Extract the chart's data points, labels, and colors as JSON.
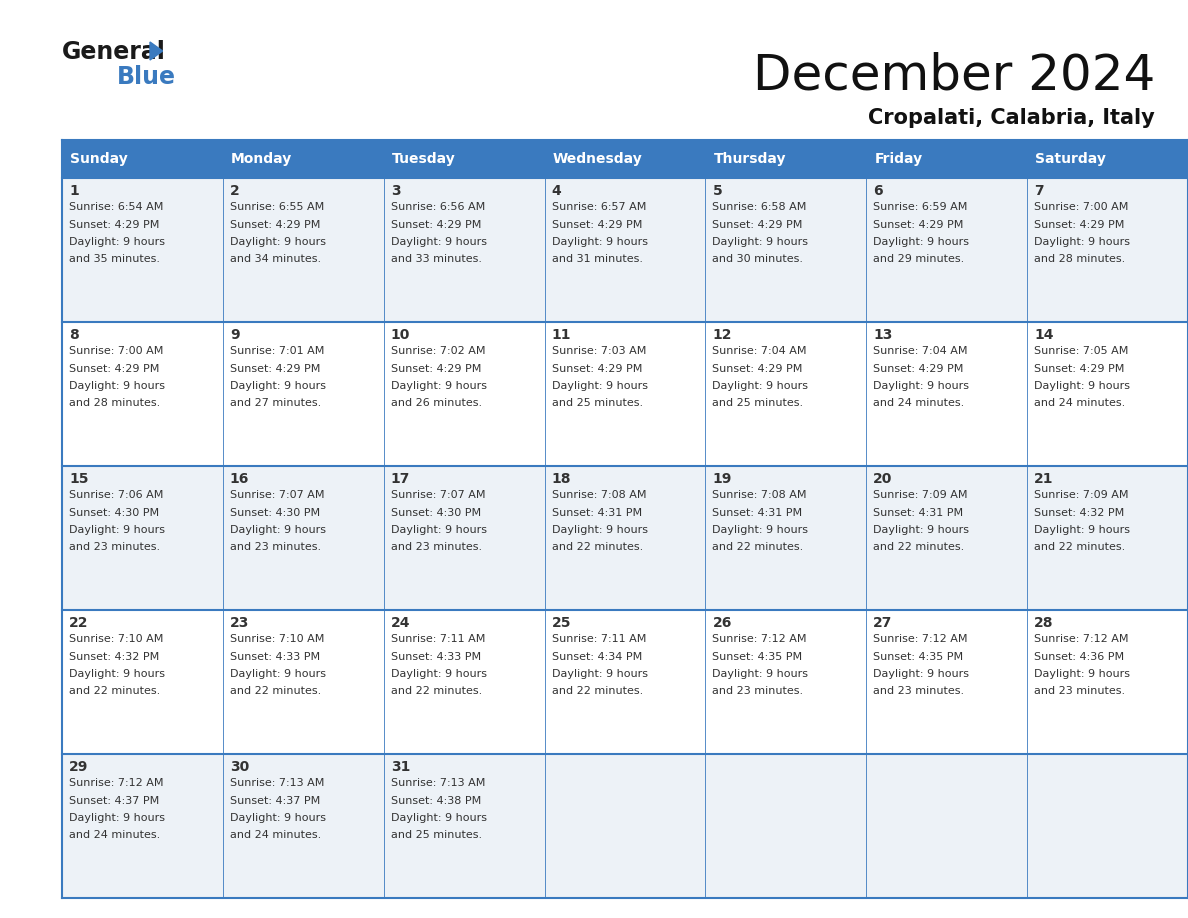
{
  "title": "December 2024",
  "subtitle": "Cropalati, Calabria, Italy",
  "header_bg": "#3a7abf",
  "header_text": "#ffffff",
  "days_of_week": [
    "Sunday",
    "Monday",
    "Tuesday",
    "Wednesday",
    "Thursday",
    "Friday",
    "Saturday"
  ],
  "row_bg": [
    "#edf2f7",
    "#ffffff",
    "#edf2f7",
    "#ffffff",
    "#edf2f7"
  ],
  "grid_line_color": "#3a7abf",
  "text_color": "#333333",
  "calendar": [
    [
      {
        "day": 1,
        "sunrise": "6:54 AM",
        "sunset": "4:29 PM",
        "daylight": "9 hours and 35 minutes."
      },
      {
        "day": 2,
        "sunrise": "6:55 AM",
        "sunset": "4:29 PM",
        "daylight": "9 hours and 34 minutes."
      },
      {
        "day": 3,
        "sunrise": "6:56 AM",
        "sunset": "4:29 PM",
        "daylight": "9 hours and 33 minutes."
      },
      {
        "day": 4,
        "sunrise": "6:57 AM",
        "sunset": "4:29 PM",
        "daylight": "9 hours and 31 minutes."
      },
      {
        "day": 5,
        "sunrise": "6:58 AM",
        "sunset": "4:29 PM",
        "daylight": "9 hours and 30 minutes."
      },
      {
        "day": 6,
        "sunrise": "6:59 AM",
        "sunset": "4:29 PM",
        "daylight": "9 hours and 29 minutes."
      },
      {
        "day": 7,
        "sunrise": "7:00 AM",
        "sunset": "4:29 PM",
        "daylight": "9 hours and 28 minutes."
      }
    ],
    [
      {
        "day": 8,
        "sunrise": "7:00 AM",
        "sunset": "4:29 PM",
        "daylight": "9 hours and 28 minutes."
      },
      {
        "day": 9,
        "sunrise": "7:01 AM",
        "sunset": "4:29 PM",
        "daylight": "9 hours and 27 minutes."
      },
      {
        "day": 10,
        "sunrise": "7:02 AM",
        "sunset": "4:29 PM",
        "daylight": "9 hours and 26 minutes."
      },
      {
        "day": 11,
        "sunrise": "7:03 AM",
        "sunset": "4:29 PM",
        "daylight": "9 hours and 25 minutes."
      },
      {
        "day": 12,
        "sunrise": "7:04 AM",
        "sunset": "4:29 PM",
        "daylight": "9 hours and 25 minutes."
      },
      {
        "day": 13,
        "sunrise": "7:04 AM",
        "sunset": "4:29 PM",
        "daylight": "9 hours and 24 minutes."
      },
      {
        "day": 14,
        "sunrise": "7:05 AM",
        "sunset": "4:29 PM",
        "daylight": "9 hours and 24 minutes."
      }
    ],
    [
      {
        "day": 15,
        "sunrise": "7:06 AM",
        "sunset": "4:30 PM",
        "daylight": "9 hours and 23 minutes."
      },
      {
        "day": 16,
        "sunrise": "7:07 AM",
        "sunset": "4:30 PM",
        "daylight": "9 hours and 23 minutes."
      },
      {
        "day": 17,
        "sunrise": "7:07 AM",
        "sunset": "4:30 PM",
        "daylight": "9 hours and 23 minutes."
      },
      {
        "day": 18,
        "sunrise": "7:08 AM",
        "sunset": "4:31 PM",
        "daylight": "9 hours and 22 minutes."
      },
      {
        "day": 19,
        "sunrise": "7:08 AM",
        "sunset": "4:31 PM",
        "daylight": "9 hours and 22 minutes."
      },
      {
        "day": 20,
        "sunrise": "7:09 AM",
        "sunset": "4:31 PM",
        "daylight": "9 hours and 22 minutes."
      },
      {
        "day": 21,
        "sunrise": "7:09 AM",
        "sunset": "4:32 PM",
        "daylight": "9 hours and 22 minutes."
      }
    ],
    [
      {
        "day": 22,
        "sunrise": "7:10 AM",
        "sunset": "4:32 PM",
        "daylight": "9 hours and 22 minutes."
      },
      {
        "day": 23,
        "sunrise": "7:10 AM",
        "sunset": "4:33 PM",
        "daylight": "9 hours and 22 minutes."
      },
      {
        "day": 24,
        "sunrise": "7:11 AM",
        "sunset": "4:33 PM",
        "daylight": "9 hours and 22 minutes."
      },
      {
        "day": 25,
        "sunrise": "7:11 AM",
        "sunset": "4:34 PM",
        "daylight": "9 hours and 22 minutes."
      },
      {
        "day": 26,
        "sunrise": "7:12 AM",
        "sunset": "4:35 PM",
        "daylight": "9 hours and 23 minutes."
      },
      {
        "day": 27,
        "sunrise": "7:12 AM",
        "sunset": "4:35 PM",
        "daylight": "9 hours and 23 minutes."
      },
      {
        "day": 28,
        "sunrise": "7:12 AM",
        "sunset": "4:36 PM",
        "daylight": "9 hours and 23 minutes."
      }
    ],
    [
      {
        "day": 29,
        "sunrise": "7:12 AM",
        "sunset": "4:37 PM",
        "daylight": "9 hours and 24 minutes."
      },
      {
        "day": 30,
        "sunrise": "7:13 AM",
        "sunset": "4:37 PM",
        "daylight": "9 hours and 24 minutes."
      },
      {
        "day": 31,
        "sunrise": "7:13 AM",
        "sunset": "4:38 PM",
        "daylight": "9 hours and 25 minutes."
      },
      null,
      null,
      null,
      null
    ]
  ],
  "logo_general_color": "#1a1a1a",
  "logo_blue_color": "#3a7abf",
  "title_fontsize": 36,
  "subtitle_fontsize": 15,
  "header_fontsize": 10,
  "day_num_fontsize": 10,
  "cell_text_fontsize": 8
}
